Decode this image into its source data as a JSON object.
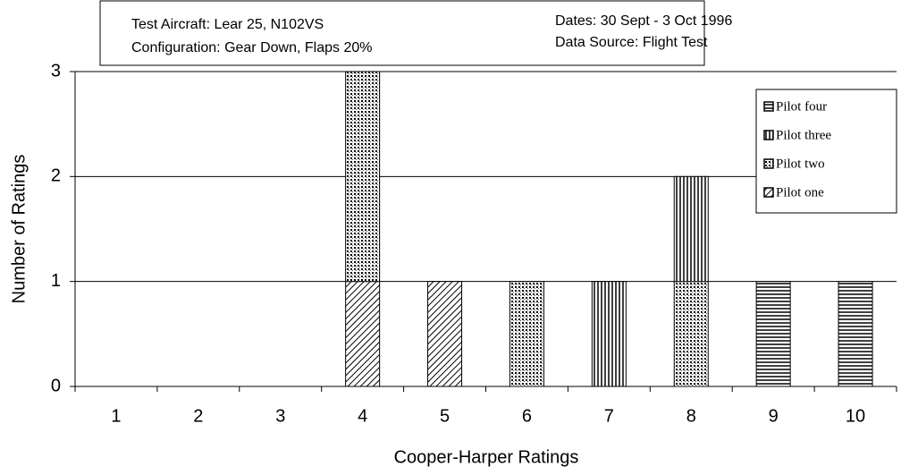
{
  "chart_data": {
    "type": "bar",
    "stacked": true,
    "annotations": [
      "Test Aircraft: Lear 25, N102VS",
      "Configuration: Gear Down, Flaps 20%",
      "Dates: 30 Sept - 3 Oct 1996",
      "Data Source:  Flight Test"
    ],
    "x_label": "Cooper-Harper Ratings",
    "y_label": "Number of Ratings",
    "categories": [
      "1",
      "2",
      "3",
      "4",
      "5",
      "6",
      "7",
      "8",
      "9",
      "10"
    ],
    "series": [
      {
        "name": "Pilot one",
        "color": "#000000",
        "values": [
          0,
          0,
          0,
          1,
          1,
          0,
          0,
          0,
          0,
          0
        ]
      },
      {
        "name": "Pilot two",
        "color": "#000000",
        "values": [
          0,
          0,
          0,
          2,
          0,
          1,
          0,
          1,
          0,
          0
        ]
      },
      {
        "name": "Pilot three",
        "color": "#000000",
        "values": [
          0,
          0,
          0,
          0,
          0,
          0,
          1,
          1,
          0,
          0
        ]
      },
      {
        "name": "Pilot four",
        "color": "#000000",
        "values": [
          0,
          0,
          0,
          0,
          0,
          0,
          0,
          0,
          1,
          1
        ]
      }
    ],
    "ylim": [
      0,
      3
    ],
    "yticks": [
      0,
      1,
      2,
      3
    ],
    "grid": true,
    "legend": "upper right"
  }
}
